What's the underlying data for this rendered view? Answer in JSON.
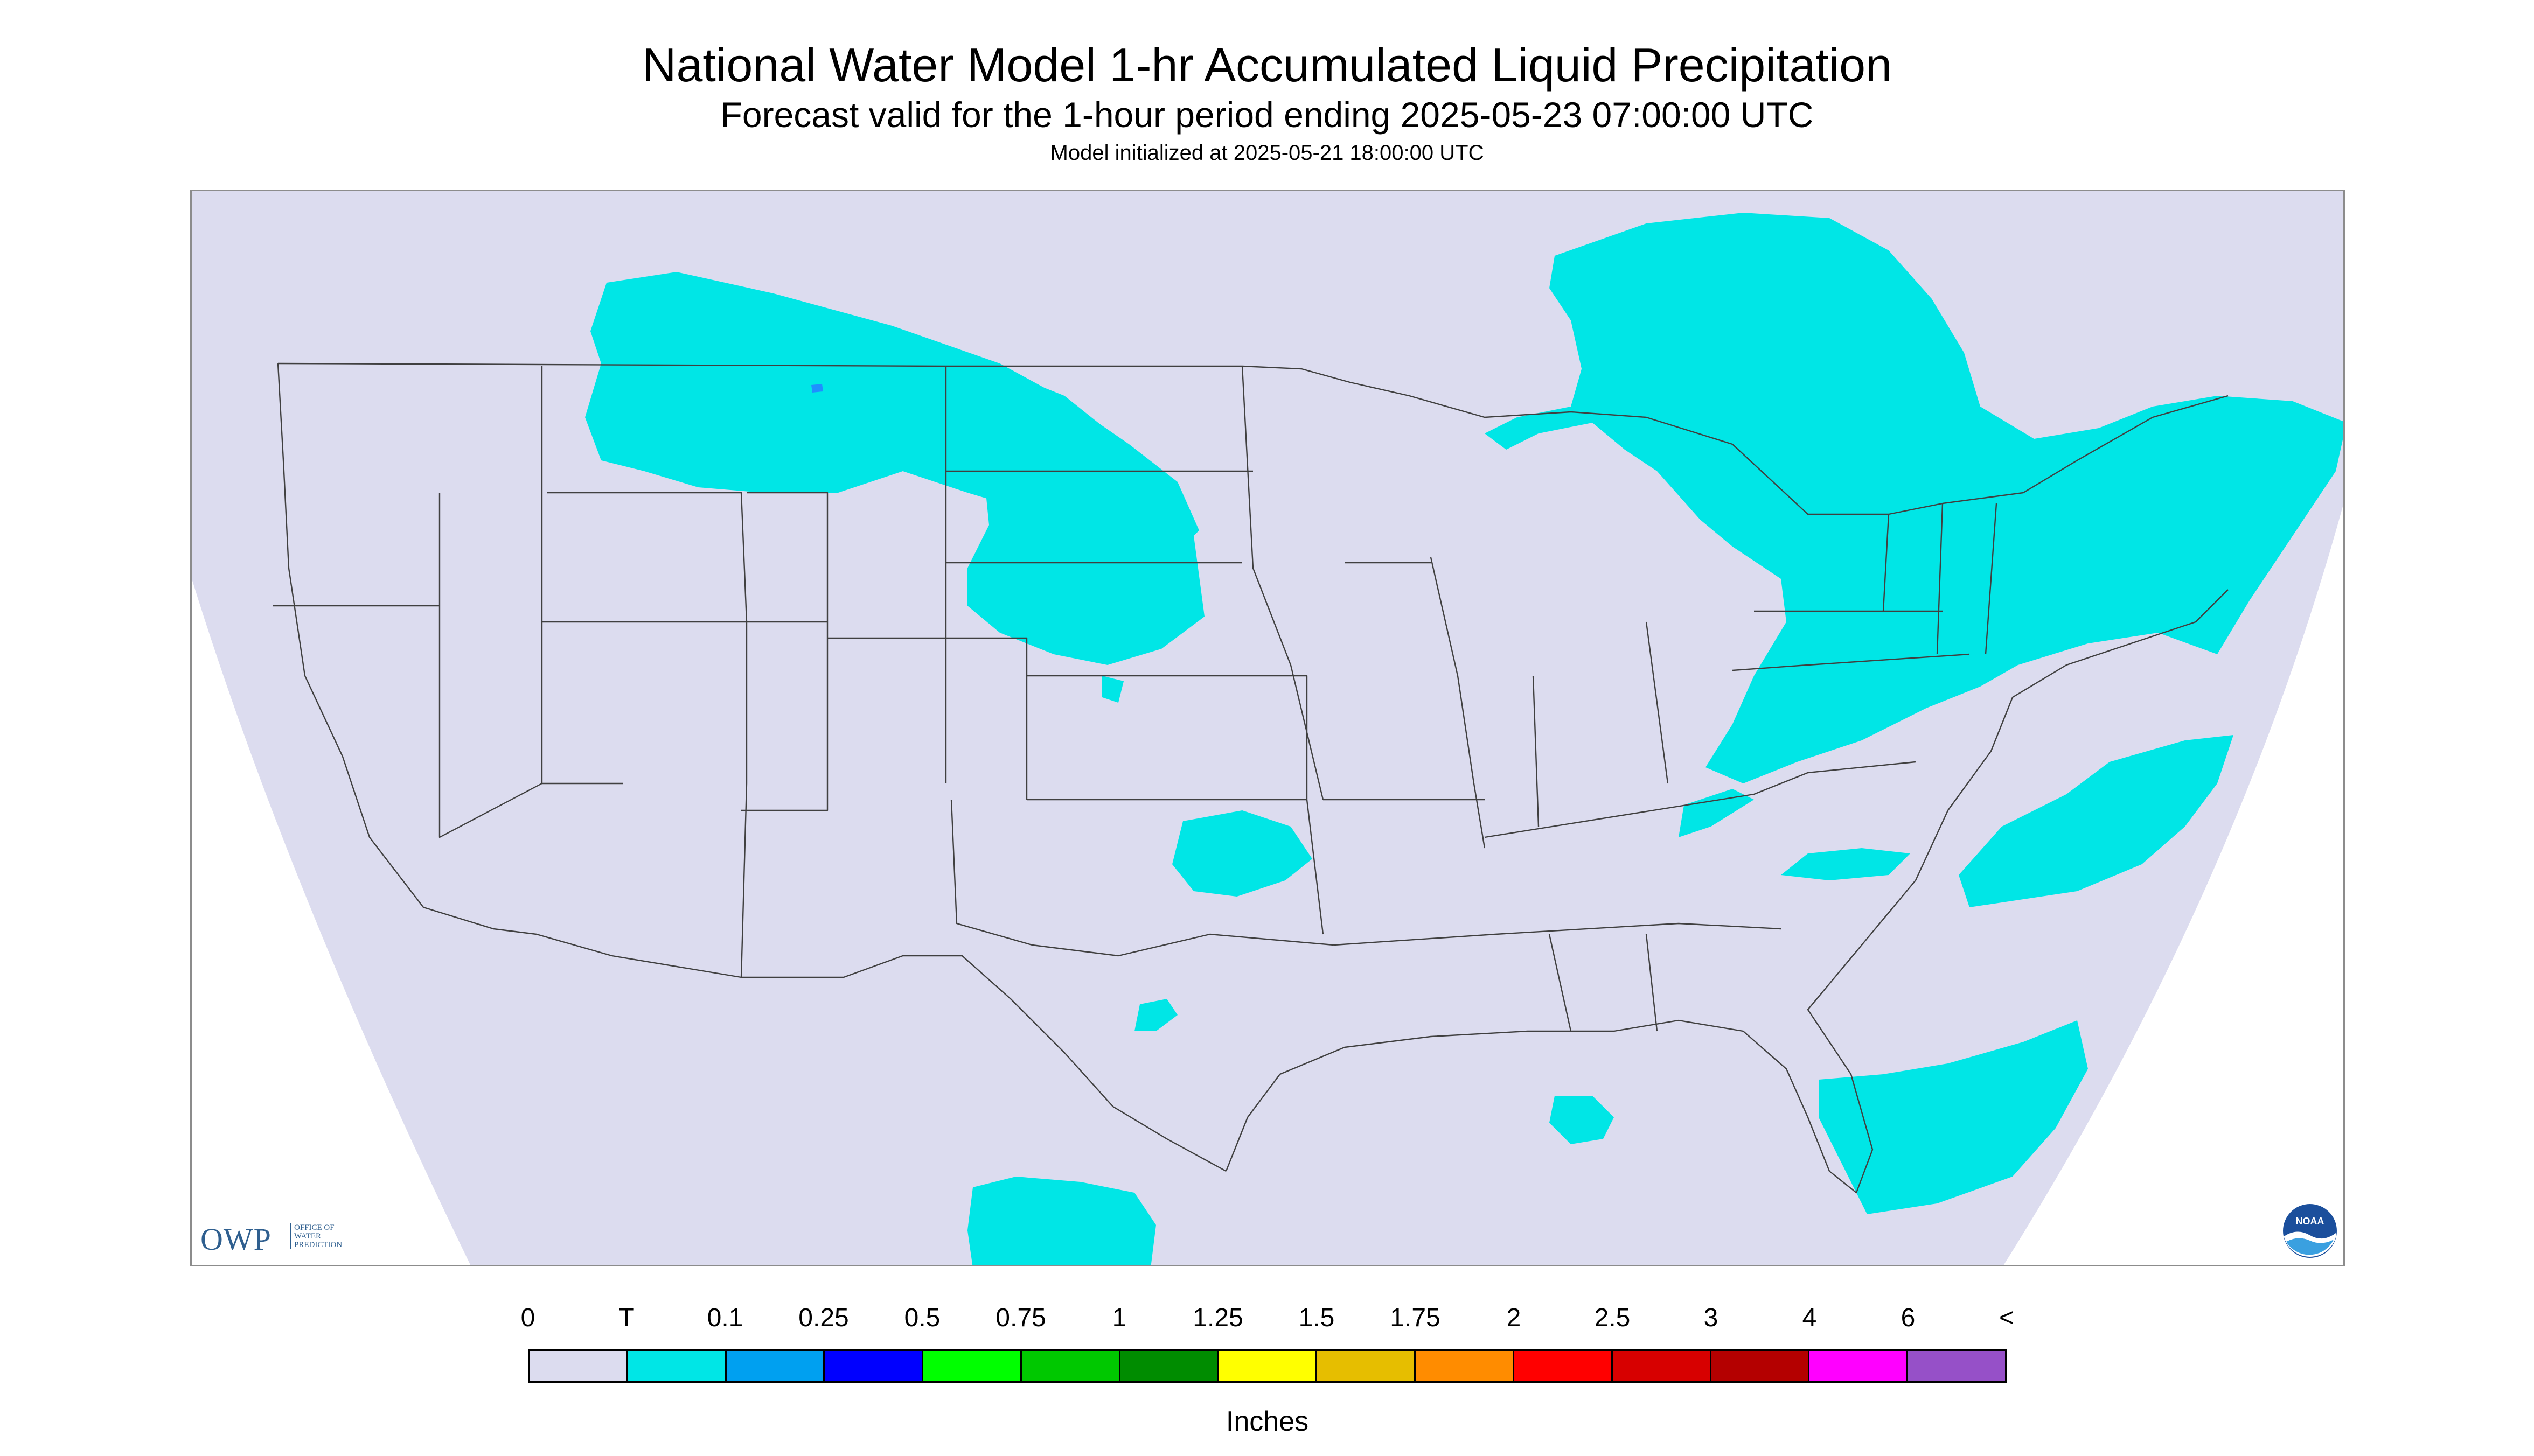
{
  "header": {
    "title": "National Water Model 1-hr Accumulated Liquid Precipitation",
    "subtitle": "Forecast valid for the 1-hour period ending 2025-05-23 07:00:00 UTC",
    "init": "Model initialized at 2025-05-21 18:00:00 UTC"
  },
  "map": {
    "background_color": "#dcdcef",
    "outside_domain_color": "#ffffff",
    "border_color": "#404040",
    "precip_color": "#00e6e6",
    "precip_dark_color": "#1e90ff"
  },
  "logos": {
    "owp_letters": "OWP",
    "owp_line1": "OFFICE OF",
    "owp_line2": "WATER",
    "owp_line3": "PREDICTION",
    "noaa_text": "NOAA"
  },
  "legend": {
    "unit_label": "Inches",
    "labels": [
      "0",
      "T",
      "0.1",
      "0.25",
      "0.5",
      "0.75",
      "1",
      "1.25",
      "1.5",
      "1.75",
      "2",
      "2.5",
      "3",
      "4",
      "6",
      "<"
    ],
    "colors": [
      "#dcdcef",
      "#00e6e6",
      "#00a0f0",
      "#0000ff",
      "#00ff00",
      "#00c800",
      "#008c00",
      "#ffff00",
      "#e6be00",
      "#ff8c00",
      "#ff0000",
      "#d70000",
      "#b40000",
      "#ff00ff",
      "#9650c8"
    ]
  }
}
